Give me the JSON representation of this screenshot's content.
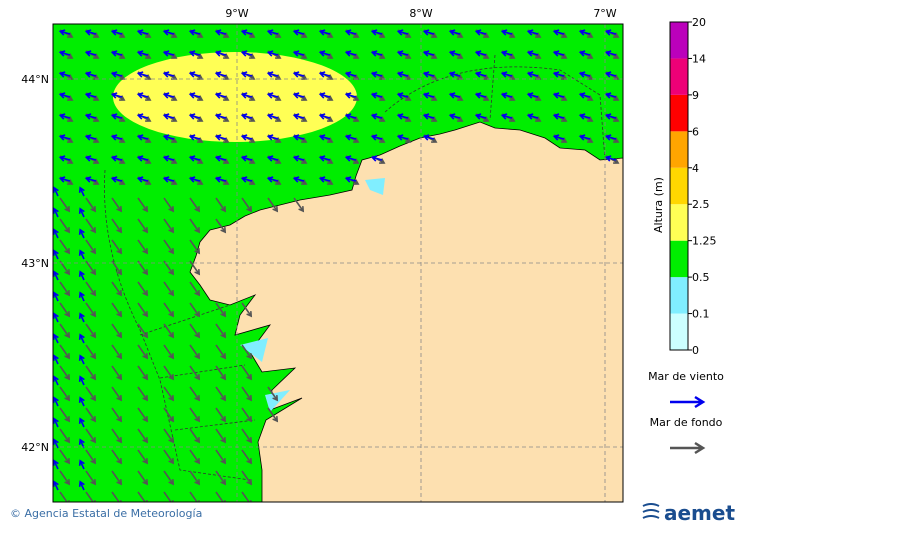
{
  "map": {
    "lon_labels": [
      "9°W",
      "8°W",
      "7°W"
    ],
    "lat_labels": [
      "44°N",
      "43°N",
      "42°N"
    ]
  },
  "colorbar": {
    "title": "Altura (m)",
    "levels": [
      0,
      0.1,
      0.5,
      1.25,
      2.5,
      4,
      6,
      9,
      14,
      20
    ],
    "colors": [
      "#ccffff",
      "#80eeff",
      "#00ee00",
      "#ffff55",
      "#ffd700",
      "#ffa500",
      "#ff0000",
      "#ee0077",
      "#bb00bb"
    ]
  },
  "legend": [
    {
      "label": "Mar de viento",
      "color": "#0000ee"
    },
    {
      "label": "Mar de fondo",
      "color": "#555555"
    }
  ],
  "footer": {
    "credit": "© Agencia Estatal de Meteorología",
    "logo": "aemet"
  }
}
